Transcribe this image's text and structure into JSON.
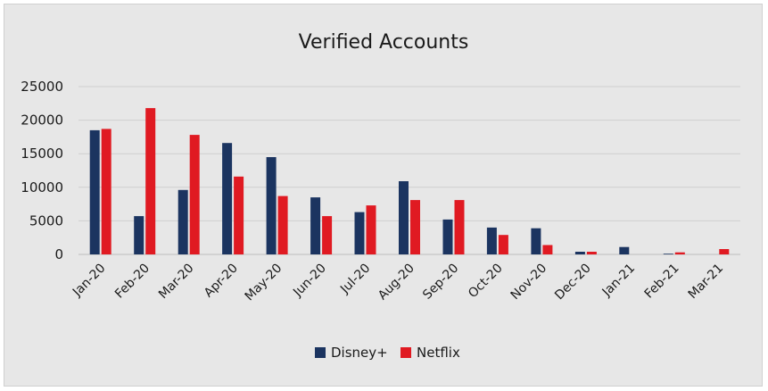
{
  "chart_data": {
    "type": "bar",
    "title": "Verified Accounts",
    "xlabel": "",
    "ylabel": "",
    "categories": [
      "Jan-20",
      "Feb-20",
      "Mar-20",
      "Apr-20",
      "May-20",
      "Jun-20",
      "Jul-20",
      "Aug-20",
      "Sep-20",
      "Oct-20",
      "Nov-20",
      "Dec-20",
      "Jan-21",
      "Feb-21",
      "Mar-21"
    ],
    "series": [
      {
        "name": "Disney+",
        "color": "#1b3460",
        "values": [
          18500,
          5700,
          9600,
          16600,
          14500,
          8500,
          6300,
          10900,
          5200,
          4000,
          3900,
          400,
          1100,
          100,
          0
        ]
      },
      {
        "name": "Netflix",
        "color": "#e01a22",
        "values": [
          18700,
          21800,
          17800,
          11600,
          8700,
          5700,
          7300,
          8100,
          8100,
          2900,
          1400,
          400,
          0,
          300,
          800
        ]
      }
    ],
    "ylim": [
      0,
      25000
    ],
    "yticks": [
      "0",
      "5000",
      "10000",
      "15000",
      "20000",
      "25000"
    ],
    "grid": true,
    "legend": "bottom-center"
  }
}
